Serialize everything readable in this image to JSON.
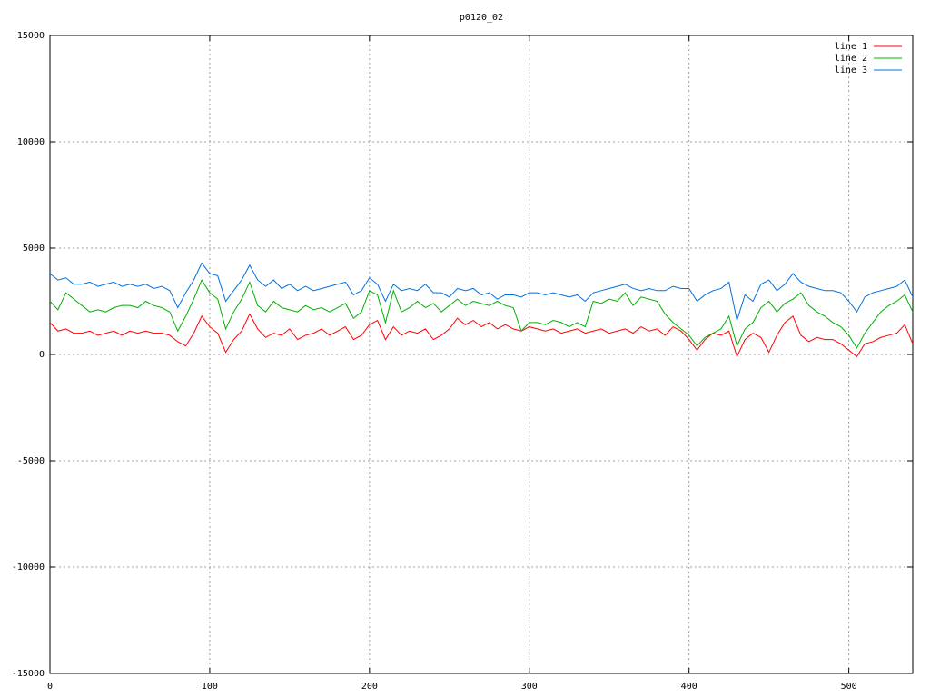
{
  "chart_data": {
    "type": "line",
    "title": "p0120_02",
    "x": [
      0,
      5,
      10,
      15,
      20,
      25,
      30,
      35,
      40,
      45,
      50,
      55,
      60,
      65,
      70,
      75,
      80,
      85,
      90,
      95,
      100,
      105,
      110,
      115,
      120,
      125,
      130,
      135,
      140,
      145,
      150,
      155,
      160,
      165,
      170,
      175,
      180,
      185,
      190,
      195,
      200,
      205,
      210,
      215,
      220,
      225,
      230,
      235,
      240,
      245,
      250,
      255,
      260,
      265,
      270,
      275,
      280,
      285,
      290,
      295,
      300,
      305,
      310,
      315,
      320,
      325,
      330,
      335,
      340,
      345,
      350,
      355,
      360,
      365,
      370,
      375,
      380,
      385,
      390,
      395,
      400,
      405,
      410,
      415,
      420,
      425,
      430,
      435,
      440,
      445,
      450,
      455,
      460,
      465,
      470,
      475,
      480,
      485,
      490,
      495,
      500,
      505,
      510,
      515,
      520,
      525,
      530,
      535,
      540
    ],
    "series": [
      {
        "name": "line 1",
        "color": "#ff0000",
        "values": [
          1500,
          1100,
          1200,
          1000,
          1000,
          1100,
          900,
          1000,
          1100,
          900,
          1100,
          1000,
          1100,
          1000,
          1000,
          900,
          600,
          400,
          1000,
          1800,
          1300,
          1000,
          100,
          700,
          1100,
          1900,
          1200,
          800,
          1000,
          900,
          1200,
          700,
          900,
          1000,
          1200,
          900,
          1100,
          1300,
          700,
          900,
          1400,
          1600,
          700,
          1300,
          900,
          1100,
          1000,
          1200,
          700,
          900,
          1200,
          1700,
          1400,
          1600,
          1300,
          1500,
          1200,
          1400,
          1200,
          1100,
          1300,
          1200,
          1100,
          1200,
          1000,
          1100,
          1200,
          1000,
          1100,
          1200,
          1000,
          1100,
          1200,
          1000,
          1300,
          1100,
          1200,
          900,
          1300,
          1100,
          700,
          200,
          700,
          1000,
          900,
          1100,
          -100,
          700,
          1000,
          800,
          100,
          900,
          1500,
          1800,
          900,
          600,
          800,
          700,
          700,
          500,
          200,
          -100,
          500,
          600,
          800,
          900,
          1000,
          1400,
          500
        ]
      },
      {
        "name": "line 2",
        "color": "#00b000",
        "values": [
          2500,
          2100,
          2900,
          2600,
          2300,
          2000,
          2100,
          2000,
          2200,
          2300,
          2300,
          2200,
          2500,
          2300,
          2200,
          2000,
          1100,
          1800,
          2600,
          3500,
          2900,
          2600,
          1200,
          2000,
          2600,
          3400,
          2300,
          2000,
          2500,
          2200,
          2100,
          2000,
          2300,
          2100,
          2200,
          2000,
          2200,
          2400,
          1700,
          2000,
          3000,
          2800,
          1500,
          3000,
          2000,
          2200,
          2500,
          2200,
          2400,
          2000,
          2300,
          2600,
          2300,
          2500,
          2400,
          2300,
          2500,
          2300,
          2200,
          1100,
          1500,
          1500,
          1400,
          1600,
          1500,
          1300,
          1500,
          1300,
          2500,
          2400,
          2600,
          2500,
          2900,
          2300,
          2700,
          2600,
          2500,
          1900,
          1500,
          1200,
          900,
          400,
          800,
          1000,
          1200,
          1800,
          400,
          1200,
          1500,
          2200,
          2500,
          2000,
          2400,
          2600,
          2900,
          2300,
          2000,
          1800,
          1500,
          1300,
          900,
          300,
          1000,
          1500,
          2000,
          2300,
          2500,
          2800,
          2000
        ]
      },
      {
        "name": "line 3",
        "color": "#0070e0",
        "values": [
          3800,
          3500,
          3600,
          3300,
          3300,
          3400,
          3200,
          3300,
          3400,
          3200,
          3300,
          3200,
          3300,
          3100,
          3200,
          3000,
          2200,
          2900,
          3500,
          4300,
          3800,
          3700,
          2500,
          3000,
          3500,
          4200,
          3500,
          3200,
          3500,
          3100,
          3300,
          3000,
          3200,
          3000,
          3100,
          3200,
          3300,
          3400,
          2800,
          3000,
          3600,
          3300,
          2500,
          3300,
          3000,
          3100,
          3000,
          3300,
          2900,
          2900,
          2700,
          3100,
          3000,
          3100,
          2800,
          2900,
          2600,
          2800,
          2800,
          2700,
          2900,
          2900,
          2800,
          2900,
          2800,
          2700,
          2800,
          2500,
          2900,
          3000,
          3100,
          3200,
          3300,
          3100,
          3000,
          3100,
          3000,
          3000,
          3200,
          3100,
          3100,
          2500,
          2800,
          3000,
          3100,
          3400,
          1600,
          2800,
          2500,
          3300,
          3500,
          3000,
          3300,
          3800,
          3400,
          3200,
          3100,
          3000,
          3000,
          2900,
          2500,
          2000,
          2700,
          2900,
          3000,
          3100,
          3200,
          3500,
          2700
        ]
      }
    ],
    "xlim": [
      0,
      540
    ],
    "ylim": [
      -15000,
      15000
    ],
    "xticks": [
      0,
      100,
      200,
      300,
      400,
      500
    ],
    "yticks": [
      -15000,
      -10000,
      -5000,
      0,
      5000,
      10000,
      15000
    ],
    "grid": true,
    "legend": "top-right"
  }
}
